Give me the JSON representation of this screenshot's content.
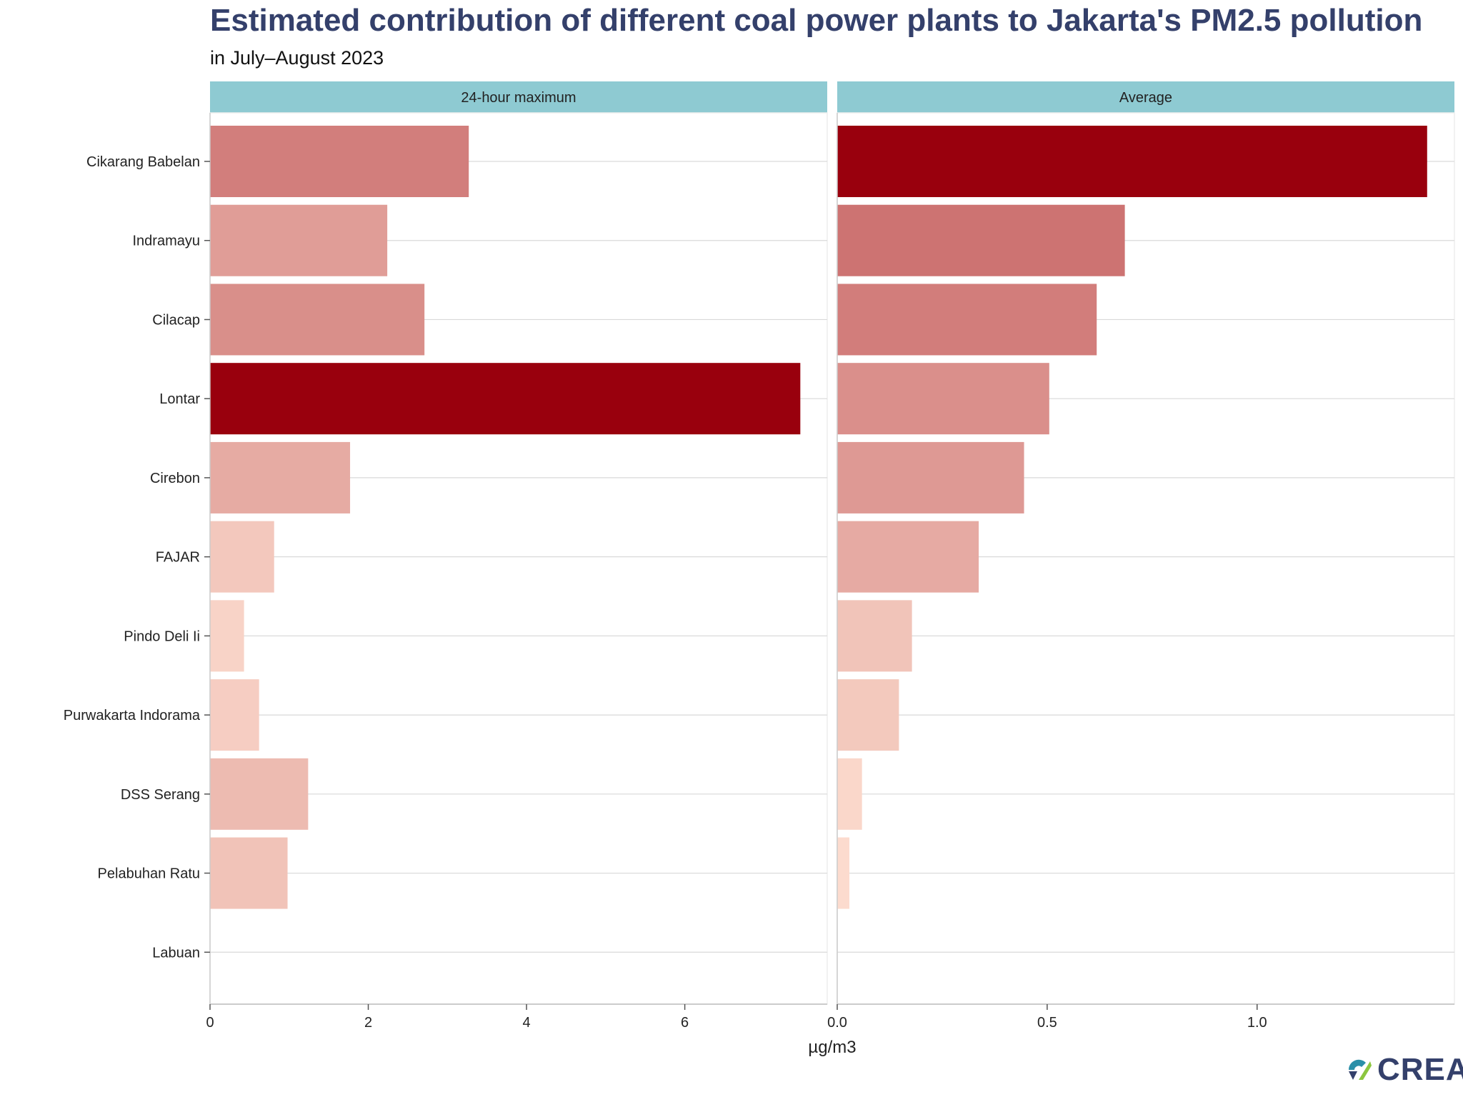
{
  "chart_data": {
    "type": "bar",
    "orientation": "horizontal",
    "title": "Estimated contribution of different coal power plants to Jakarta's PM2.5 pollution",
    "subtitle": "in July–August 2023",
    "xlabel": "µg/m3",
    "ylabel": "",
    "grid": true,
    "categories": [
      "Cikarang Babelan",
      "Indramayu",
      "Cilacap",
      "Lontar",
      "Cirebon",
      "FAJAR",
      "Pindo Deli Ii",
      "Purwakarta Indorama",
      "DSS Serang",
      "Pelabuhan Ratu",
      "Labuan"
    ],
    "panels": [
      {
        "name": "24-hour maximum",
        "xlim": [
          0,
          7.8
        ],
        "ticks": [
          0,
          2,
          4,
          6
        ],
        "tick_labels": [
          "0",
          "2",
          "4",
          "6"
        ],
        "values": [
          3.27,
          2.24,
          2.71,
          7.46,
          1.77,
          0.81,
          0.43,
          0.62,
          1.24,
          0.98,
          0.0
        ]
      },
      {
        "name": "Average",
        "xlim": [
          0,
          1.47
        ],
        "ticks": [
          0,
          0.5,
          1.0
        ],
        "tick_labels": [
          "0.0",
          "0.5",
          "1.0"
        ],
        "values": [
          1.405,
          0.685,
          0.618,
          0.505,
          0.445,
          0.337,
          0.178,
          0.147,
          0.059,
          0.029,
          0.0
        ]
      }
    ],
    "color_scale": {
      "low": "#fee0d2",
      "high": "#99000d"
    }
  },
  "logo": {
    "text": "CREA"
  }
}
